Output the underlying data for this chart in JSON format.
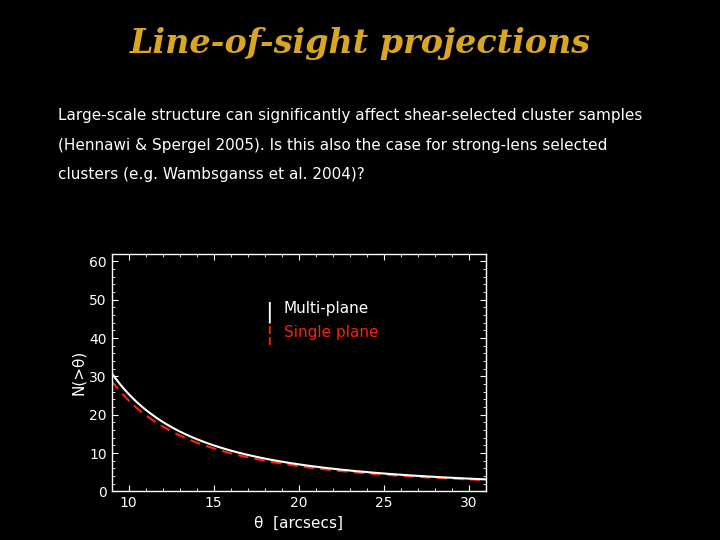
{
  "title": "Line-of-sight projections",
  "title_color": "#DAA520",
  "title_fontsize": 24,
  "body_line1": "Large-scale structure can significantly affect shear-selected cluster samples",
  "body_line2": "(Hennawi & Spergel 2005). Is this also the case for strong-lens selected",
  "body_line3": "clusters (e.g. Wambsganss et al. 2004)?",
  "body_text_color": "#FFFFFF",
  "body_fontsize": 11,
  "background_color": "#000000",
  "plot_bg_color": "#000000",
  "xlabel": "θ  [arcsecs]",
  "ylabel": "N(>θ)",
  "xlabel_color": "#FFFFFF",
  "ylabel_color": "#FFFFFF",
  "tick_color": "#FFFFFF",
  "axis_color": "#FFFFFF",
  "xlim": [
    9,
    31
  ],
  "ylim": [
    0,
    62
  ],
  "xticks": [
    10,
    15,
    20,
    25,
    30
  ],
  "yticks": [
    0,
    10,
    20,
    30,
    40,
    50,
    60
  ],
  "legend_multi_plane": "Multi-plane",
  "legend_single_plane": "Single plane",
  "legend_multi_color": "#FFFFFF",
  "legend_single_color": "#FF2200",
  "line_multi_color": "#FFFFFF",
  "line_single_color": "#FF2200",
  "power_law_exp": 1.85,
  "A_multi": 1800,
  "A_single": 1680
}
